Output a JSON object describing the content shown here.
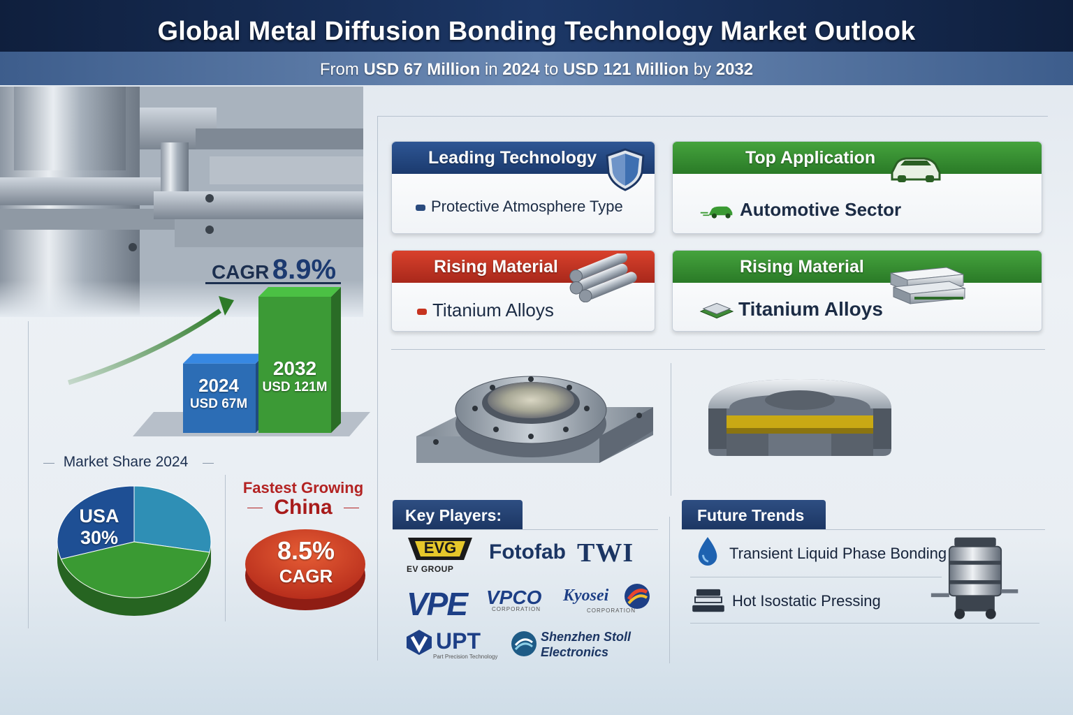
{
  "header": {
    "title": "Global Metal Diffusion Bonding Technology Market Outlook",
    "subtitle_parts": [
      "From ",
      "USD 67 Million",
      " in ",
      "2024",
      " to ",
      "USD 121 Million",
      " by ",
      "2032"
    ]
  },
  "growth": {
    "cagr_label": "CAGR",
    "cagr_value": "8.9%",
    "bars": [
      {
        "year": "2024",
        "value_label": "USD 67M",
        "value": 67,
        "color": "#2c6db5"
      },
      {
        "year": "2032",
        "value_label": "USD 121M",
        "value": 121,
        "color": "#3c9a36"
      }
    ]
  },
  "market_share": {
    "title": "Market Share 2024",
    "leader": "USA",
    "leader_share": "30%",
    "slices": [
      {
        "share": 30,
        "color": "#1e4f94"
      },
      {
        "share": 28,
        "color": "#2f8fb5"
      },
      {
        "share": 42,
        "color": "#3a9a33"
      }
    ]
  },
  "fastest": {
    "title": "Fastest Growing",
    "country": "China",
    "value": "8.5%",
    "unit": "CAGR"
  },
  "cards": {
    "leading_technology": {
      "title": "Leading Technology",
      "value": "Protective Atmosphere Type"
    },
    "top_application": {
      "title": "Top Application",
      "value": "Automotive Sector"
    },
    "rising_material_1": {
      "title": "Rising Material",
      "value": "Titanium Alloys"
    },
    "rising_material_2": {
      "title": "Rising Material",
      "value": "Titanium Alloys"
    }
  },
  "key_players": {
    "title": "Key Players:",
    "evg": {
      "mark": "EVG",
      "caption": "EV GROUP"
    },
    "fotofab": "Fotofab",
    "twi": "TWI",
    "vpe": "VPE",
    "vpco": {
      "mark": "VPCO",
      "caption": "CORPORATION"
    },
    "kyosei": {
      "mark": "Kyosei",
      "caption": "CORPORATION"
    },
    "upt": {
      "mark": "UPT",
      "caption": "Part Precision Technology"
    },
    "shenzhen": {
      "line1": "Shenzhen Stoll",
      "line2": "Electronics"
    }
  },
  "future_trends": {
    "title": "Future Trends",
    "items": [
      "Transient Liquid Phase Bonding",
      "Hot Isostatic Pressing"
    ]
  },
  "colors": {
    "navy": "#1c3663",
    "green": "#3a9a33",
    "red": "#b32222"
  },
  "icons": [
    "shield-icon",
    "car-icon",
    "metal-rods-icon",
    "metal-blocks-icon",
    "water-drop-icon",
    "press-icon",
    "furnace-icon"
  ]
}
